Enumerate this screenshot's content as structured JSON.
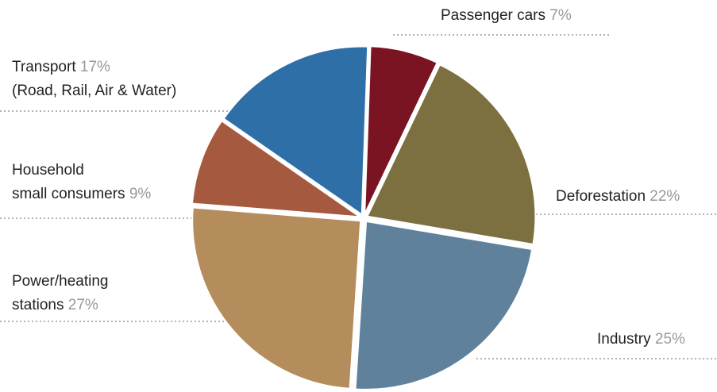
{
  "chart_data": {
    "type": "pie",
    "categories": [
      "Passenger cars",
      "Deforestation",
      "Industry",
      "Power/heating\nstations",
      "Household\nsmall consumers",
      "Transport"
    ],
    "values": [
      7,
      22,
      25,
      27,
      9,
      17
    ],
    "value_labels": [
      "7%",
      "22%",
      "25%",
      "27%",
      "9%",
      "17%"
    ],
    "colors": [
      "#7a1422",
      "#7c7040",
      "#5f819c",
      "#b58c5c",
      "#a55a40",
      "#2f6fa8"
    ],
    "annotations": [
      "(Road, Rail, Air & Water)"
    ]
  }
}
